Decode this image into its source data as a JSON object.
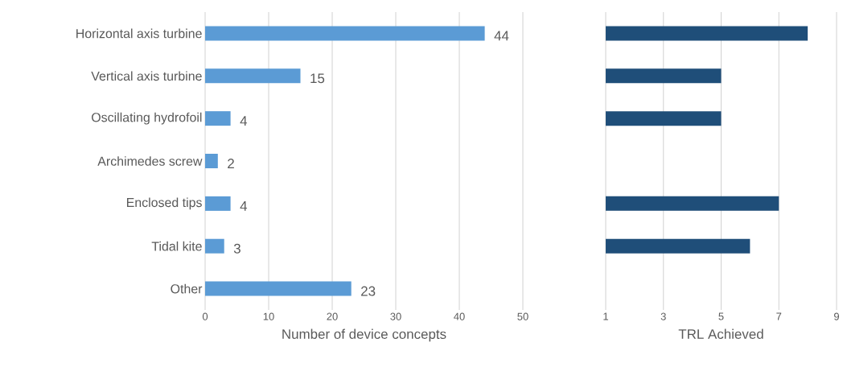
{
  "chart_data": [
    {
      "type": "bar",
      "orientation": "horizontal",
      "categories": [
        "Horizontal axis turbine",
        "Vertical axis turbine",
        "Oscillating hydrofoil",
        "Archimedes screw",
        "Enclosed tips",
        "Tidal kite",
        "Other"
      ],
      "values": [
        44,
        15,
        4,
        2,
        4,
        3,
        23
      ],
      "color": "#5b9bd5",
      "xlim": [
        0,
        50
      ],
      "xticks": [
        0,
        10,
        20,
        30,
        40,
        50
      ],
      "xlabel": "Number of device concepts",
      "grid": "x",
      "data_labels": true
    },
    {
      "type": "bar",
      "orientation": "horizontal",
      "categories": [
        null,
        null,
        null,
        null,
        null,
        null,
        null
      ],
      "values": [
        8,
        5,
        5,
        1,
        7,
        6,
        1
      ],
      "color": "#1f4e79",
      "xlim": [
        1,
        9
      ],
      "xticks": [
        1,
        3,
        5,
        7,
        9
      ],
      "xlabel": "TRL Achieved",
      "grid": "x",
      "tick_labels": "x"
    }
  ]
}
